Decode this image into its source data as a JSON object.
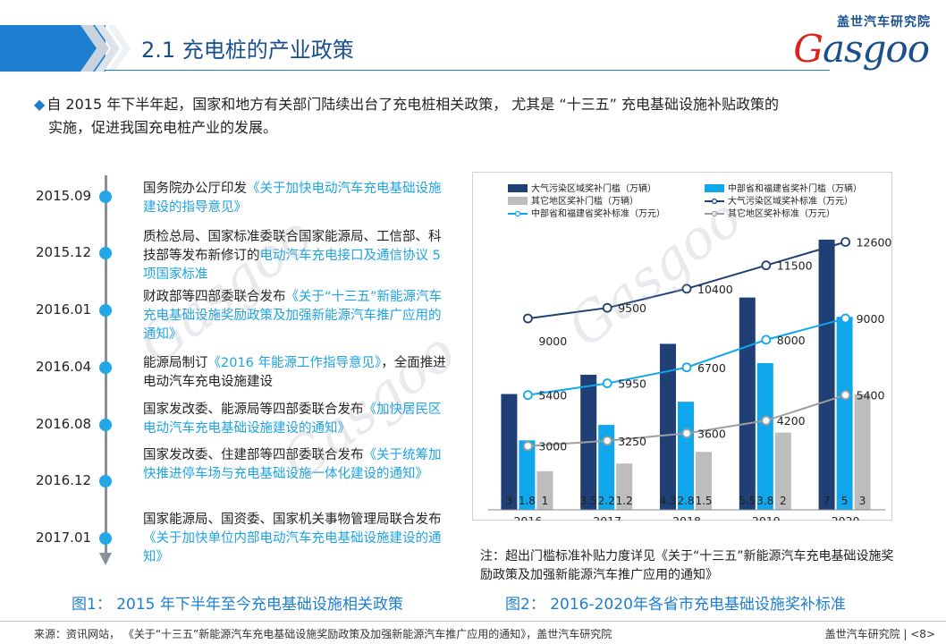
{
  "header": {
    "title": "2.1 充电桩的产业政策",
    "logo_cn": "盖世汽车研究院",
    "logo_en_first": "G",
    "logo_en_rest": "asgoo"
  },
  "intro": {
    "line1": "自 2015 年下半年起，国家和地方有关部门陆续出台了充电桩相关政策， 尤其是 “十三五” 充电基础设施补贴政策的",
    "line2": "实施，促进我国充电桩产业的发展。"
  },
  "timeline": {
    "items": [
      {
        "date": "2015.09",
        "plain": "国务院办公厅印发",
        "hl": "《关于加快电动汽车充电基础设施建设的指导意见》",
        "tail": ""
      },
      {
        "date": "2015.12",
        "plain": "质检总局、国家标准委联合国家能源局、工信部、科技部等发布新修订的",
        "hl": "电动汽车充电接口及通信协议 5 项国家标准",
        "tail": ""
      },
      {
        "date": "2016.01",
        "plain": "财政部等四部委联合发布",
        "hl": "《关于“十三五”新能源汽车充电基础设施奖励政策及加强新能源汽车推广应用的通知》",
        "tail": ""
      },
      {
        "date": "2016.04",
        "plain": "能源局制订",
        "hl": "《2016 年能源工作指导意见》",
        "tail": "，全面推进电动汽车充电设施建设"
      },
      {
        "date": "2016.08",
        "plain": "国家发改委、能源局等四部委联合发布",
        "hl": "《加快居民区电动汽车充电基础设施建设的通知》",
        "tail": ""
      },
      {
        "date": "2016.12",
        "plain": "国家发改委、住建部等四部委联合发布",
        "hl": "《关于统筹加快推进停车场与充电基础设施一体化建设的通知》",
        "tail": ""
      },
      {
        "date": "2017.01",
        "plain": "国家能源局、国资委、国家机关事物管理局联合发布",
        "hl": "《关于加快单位内部电动汽车充电基础设施建设的通知》",
        "tail": ""
      }
    ],
    "caption": "图1： 2015 年下半年至今充电基础设施相关政策"
  },
  "chart_data": {
    "type": "bar",
    "categories": [
      "2016",
      "2017",
      "2018",
      "2019",
      "2020"
    ],
    "series": [
      {
        "name": "大气污染区域奖补门槛（万辆）",
        "kind": "bar",
        "color": "#1f3f75",
        "values": [
          3,
          3.5,
          4.3,
          5.5,
          7
        ],
        "labels": [
          "3",
          "3.5",
          "4.3",
          "5.5",
          "7"
        ]
      },
      {
        "name": "中部省和福建省奖补门槛（万辆）",
        "kind": "bar",
        "color": "#0fa8ec",
        "values": [
          1.8,
          2.2,
          2.8,
          3.8,
          5
        ],
        "labels": [
          "1.8",
          "2.2",
          "2.8",
          "3.8",
          "5"
        ]
      },
      {
        "name": "其它地区奖补门槛（万辆）",
        "kind": "bar",
        "color": "#bdbdbd",
        "values": [
          1,
          1.2,
          1.5,
          2,
          3
        ],
        "labels": [
          "1",
          "1.2",
          "1.5",
          "2",
          "3"
        ]
      },
      {
        "name": "大气污染区域奖补标准（万元）",
        "kind": "line",
        "color": "#1f3f75",
        "values": [
          9000,
          9500,
          10400,
          11500,
          12600
        ],
        "labels": [
          "9000",
          "9500",
          "10400",
          "11500",
          "12600"
        ]
      },
      {
        "name": "中部省和福建省奖补标准（万元）",
        "kind": "line",
        "color": "#0fa8ec",
        "values": [
          5400,
          5950,
          6700,
          8000,
          9000
        ],
        "labels": [
          "5400",
          "5950",
          "6700",
          "8000",
          "9000"
        ]
      },
      {
        "name": "其它地区奖补标准（万元）",
        "kind": "line",
        "color": "#9e9e9e",
        "values": [
          3000,
          3250,
          3600,
          4200,
          5400
        ],
        "labels": [
          "3000",
          "3250",
          "3600",
          "4200",
          "5400"
        ]
      }
    ],
    "legend_position": "top",
    "grid": false
  },
  "note": "注：超出门槛标准补贴力度详见《关于“十三五”新能源汽车充电基础设施奖励政策及加强新能源汽车推广应用的通知》",
  "chart_caption": "图2： 2016-2020年各省市充电基础设施奖补标准",
  "footer": {
    "source": "来源：资讯网站， 《关于“十三五”新能源汽车充电基础设施奖励政策及加强新能源汽车推广应用的通知》，盖世汽车研究院",
    "brand": "盖世汽车研究院 | <8>"
  }
}
